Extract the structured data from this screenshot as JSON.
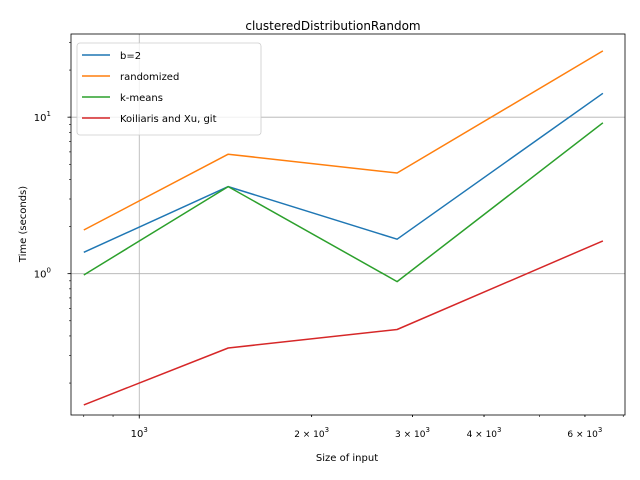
{
  "chart_data": {
    "type": "line",
    "title": "clusteredDistributionRandom",
    "xlabel": "Size of input",
    "ylabel": "Time (seconds)",
    "xscale": "log",
    "yscale": "log",
    "xlim": [
      760,
      7050
    ],
    "ylim": [
      0.125,
      34
    ],
    "grid": "major",
    "legend_position": "top-left",
    "x": [
      800,
      1430,
      2820,
      6450
    ],
    "series": [
      {
        "name": "b=2",
        "color": "#1f77b4",
        "values": [
          1.37,
          3.6,
          1.66,
          14.2
        ]
      },
      {
        "name": "randomized",
        "color": "#ff7f0e",
        "values": [
          1.9,
          5.8,
          4.4,
          26.5
        ]
      },
      {
        "name": "k-means",
        "color": "#2ca02c",
        "values": [
          0.98,
          3.6,
          0.89,
          9.2
        ]
      },
      {
        "name": "Koiliaris and Xu, git",
        "color": "#d62728",
        "values": [
          0.145,
          0.335,
          0.44,
          1.62
        ]
      }
    ],
    "x_ticks": [
      {
        "value": 1000,
        "base": "10",
        "exp": "3",
        "coef": ""
      },
      {
        "value": 2000,
        "base": "10",
        "exp": "3",
        "coef": "2 × "
      },
      {
        "value": 3000,
        "base": "10",
        "exp": "3",
        "coef": "3 × "
      },
      {
        "value": 4000,
        "base": "10",
        "exp": "3",
        "coef": "4 × "
      },
      {
        "value": 6000,
        "base": "10",
        "exp": "3",
        "coef": "6 × "
      }
    ],
    "y_ticks": [
      {
        "value": 1,
        "base": "10",
        "exp": "0"
      },
      {
        "value": 10,
        "base": "10",
        "exp": "1"
      }
    ]
  }
}
